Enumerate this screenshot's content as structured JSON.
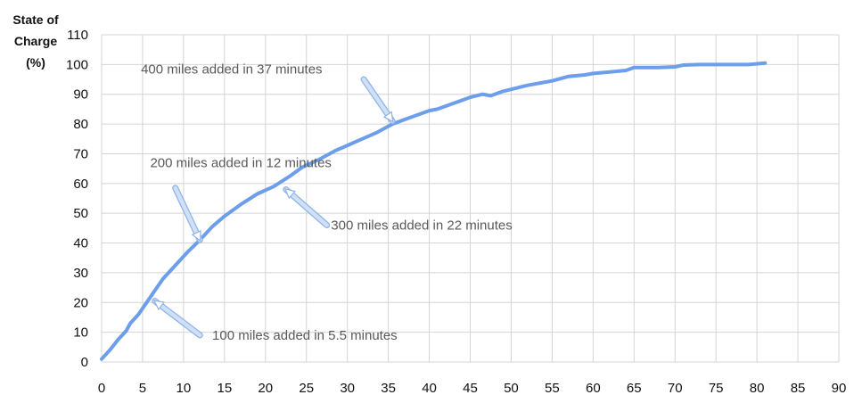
{
  "chart_data": {
    "type": "line",
    "ylabel_lines": [
      "State of",
      "Charge",
      "(%)"
    ],
    "xlim": [
      0,
      90
    ],
    "ylim": [
      0,
      110
    ],
    "xticks": [
      0,
      5,
      10,
      15,
      20,
      25,
      30,
      35,
      40,
      45,
      50,
      55,
      60,
      65,
      70,
      75,
      80,
      85,
      90
    ],
    "yticks": [
      0,
      10,
      20,
      30,
      40,
      50,
      60,
      70,
      80,
      90,
      100,
      110
    ],
    "grid": true,
    "line_color": "#6d9eeb",
    "arrow_color": "#cfe0f7",
    "series": [
      {
        "x": [
          0,
          1,
          2,
          3,
          3.5,
          4.5,
          5.5,
          6.5,
          7.5,
          9,
          10.5,
          12,
          13.5,
          15,
          17,
          19,
          21,
          23,
          24.5,
          26.5,
          28.5,
          31,
          33.5,
          35.5,
          37.5,
          40,
          41,
          43,
          45,
          46.5,
          47.5,
          49,
          50.5,
          52,
          54,
          55,
          57,
          59,
          60,
          62,
          64,
          65,
          67,
          68,
          70,
          71,
          73,
          75,
          77,
          79,
          81
        ],
        "y": [
          1,
          4,
          7.5,
          10.5,
          13,
          16,
          20,
          24,
          28,
          32.5,
          37,
          41,
          45.5,
          49,
          53,
          56.5,
          59,
          62.5,
          65.5,
          68,
          71,
          74,
          77,
          80,
          82,
          84.5,
          85,
          87,
          89,
          90,
          89.5,
          91,
          92,
          93,
          94,
          94.5,
          96,
          96.5,
          97,
          97.5,
          98,
          99,
          99,
          99,
          99.2,
          99.8,
          100,
          100,
          100,
          100,
          100.5
        ]
      }
    ],
    "annotations": [
      {
        "text": "100 miles added in 5.5 minutes",
        "label_x": 13.5,
        "label_y": 7.5,
        "anchor": "start",
        "arrow_from": [
          12,
          9
        ],
        "arrow_to": [
          6.5,
          20.5
        ]
      },
      {
        "text": "200 miles added in 12 minutes",
        "label_x": 17,
        "label_y": 65.5,
        "anchor": "middle",
        "arrow_from": [
          9,
          58.5
        ],
        "arrow_to": [
          12,
          41
        ]
      },
      {
        "text": "300 miles added in 22 minutes",
        "label_x": 28,
        "label_y": 44.5,
        "anchor": "start",
        "arrow_from": [
          27.5,
          46
        ],
        "arrow_to": [
          22.5,
          58
        ]
      },
      {
        "text": "400 miles added in 37 minutes",
        "label_x": 4.8,
        "label_y": 97,
        "anchor": "start",
        "arrow_from": [
          32,
          95
        ],
        "arrow_to": [
          35.5,
          81
        ]
      }
    ]
  }
}
